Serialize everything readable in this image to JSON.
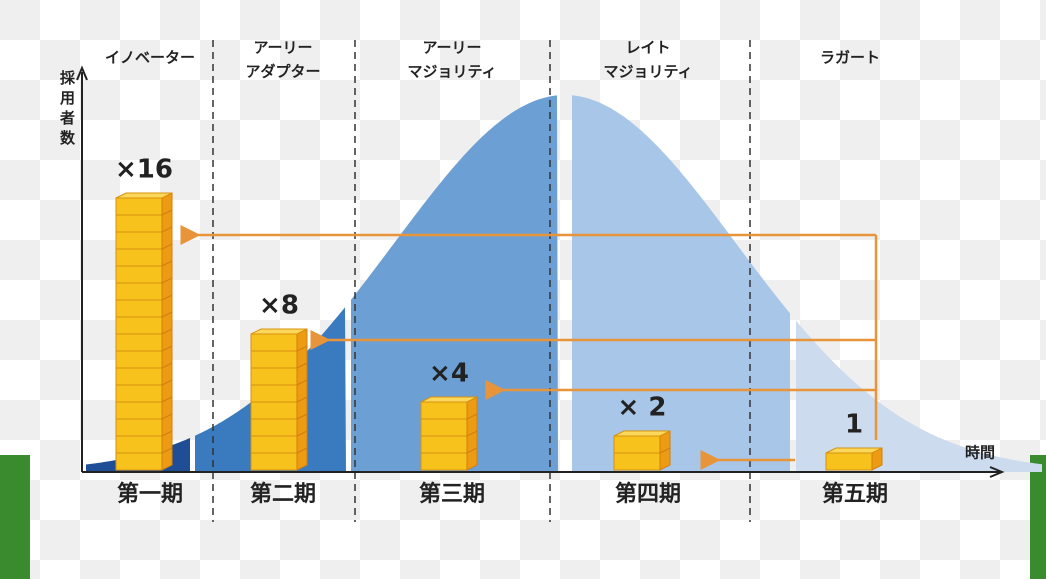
{
  "y_axis_label": "採用者数",
  "x_axis_label": "時間",
  "segments": [
    {
      "name": [
        "イノベーター"
      ],
      "period": "第一期",
      "stack_label": "×16",
      "coins": 16
    },
    {
      "name": [
        "アーリー",
        "アダプター"
      ],
      "period": "第二期",
      "stack_label": "×8",
      "coins": 8
    },
    {
      "name": [
        "アーリー",
        "マジョリティ"
      ],
      "period": "第三期",
      "stack_label": "×4",
      "coins": 4
    },
    {
      "name": [
        "レイト",
        "マジョリティ"
      ],
      "period": "第四期",
      "stack_label": "× 2",
      "coins": 2
    },
    {
      "name": [
        "ラガート"
      ],
      "period": "第五期",
      "stack_label": "1",
      "coins": 1
    }
  ]
}
